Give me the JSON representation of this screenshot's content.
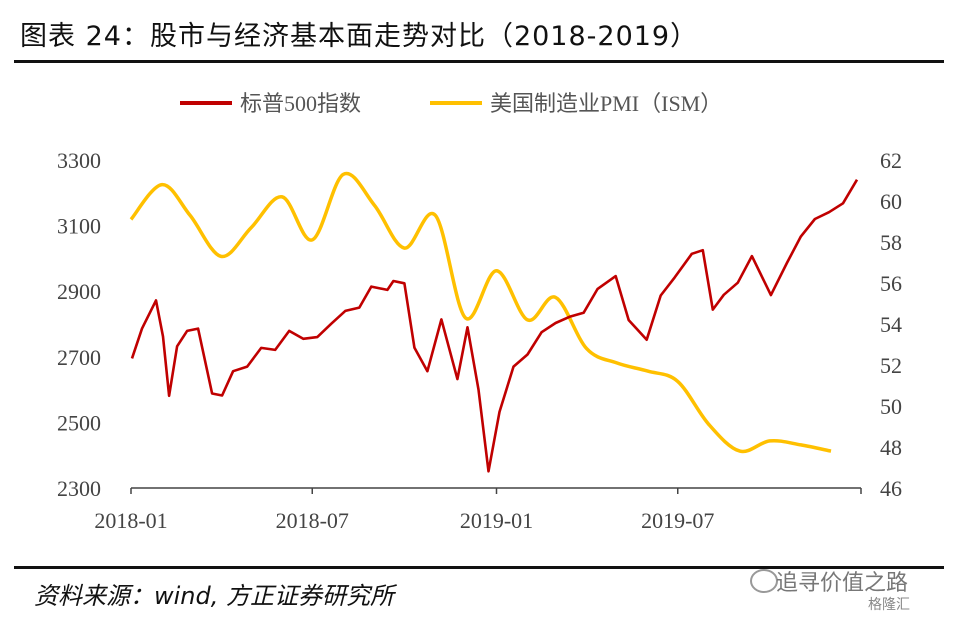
{
  "title": "图表 24：股市与经济基本面走势对比（2018-2019）",
  "source": "资料来源：wind, 方正证券研究所",
  "watermark": "追寻价值之路",
  "watermark_sub": "格隆汇",
  "colors": {
    "sp500": "#c00000",
    "pmi": "#ffc000",
    "axis": "#555555"
  },
  "chart_data": {
    "type": "line",
    "title": "",
    "xlabel": "",
    "ylabel": "",
    "legend_position": "top",
    "grid": false,
    "x_ticks": [
      "2018-01",
      "2018-07",
      "2019-01",
      "2019-07"
    ],
    "x_range": [
      "2018-01-01",
      "2019-12-31"
    ],
    "y_left_ticks": [
      2300,
      2500,
      2700,
      2900,
      3100,
      3300
    ],
    "y_left_range": [
      2300,
      3300
    ],
    "y_right_ticks": [
      46,
      48,
      50,
      52,
      54,
      56,
      58,
      60,
      62
    ],
    "y_right_range": [
      46,
      62
    ],
    "series": [
      {
        "name": "标普500指数",
        "axis": "left",
        "color": "#c00000",
        "x": [
          "2018-01-02",
          "2018-01-12",
          "2018-01-26",
          "2018-02-02",
          "2018-02-08",
          "2018-02-16",
          "2018-02-26",
          "2018-03-09",
          "2018-03-23",
          "2018-04-02",
          "2018-04-13",
          "2018-04-27",
          "2018-05-11",
          "2018-05-25",
          "2018-06-08",
          "2018-06-22",
          "2018-07-06",
          "2018-07-20",
          "2018-08-03",
          "2018-08-17",
          "2018-08-29",
          "2018-09-14",
          "2018-09-20",
          "2018-10-01",
          "2018-10-11",
          "2018-10-24",
          "2018-11-07",
          "2018-11-23",
          "2018-12-03",
          "2018-12-14",
          "2018-12-24",
          "2019-01-04",
          "2019-01-18",
          "2019-02-01",
          "2019-02-15",
          "2019-03-01",
          "2019-03-15",
          "2019-03-29",
          "2019-04-12",
          "2019-04-30",
          "2019-05-13",
          "2019-05-31",
          "2019-06-14",
          "2019-06-28",
          "2019-07-15",
          "2019-07-26",
          "2019-08-05",
          "2019-08-16",
          "2019-08-30",
          "2019-09-13",
          "2019-10-02",
          "2019-10-18",
          "2019-11-01",
          "2019-11-15",
          "2019-11-29",
          "2019-12-13",
          "2019-12-27"
        ],
        "values": [
          2695,
          2786,
          2872,
          2762,
          2581,
          2732,
          2779,
          2786,
          2588,
          2582,
          2656,
          2670,
          2727,
          2721,
          2779,
          2755,
          2760,
          2801,
          2840,
          2850,
          2914,
          2904,
          2931,
          2924,
          2728,
          2656,
          2814,
          2632,
          2790,
          2600,
          2351,
          2532,
          2670,
          2707,
          2775,
          2803,
          2822,
          2834,
          2907,
          2946,
          2812,
          2752,
          2887,
          2942,
          3014,
          3025,
          2844,
          2889,
          2926,
          3007,
          2888,
          2986,
          3067,
          3120,
          3141,
          3168,
          3240
        ]
      },
      {
        "name": "美国制造业PMI（ISM）",
        "axis": "right",
        "color": "#ffc000",
        "x": [
          "2018-01-01",
          "2018-02-01",
          "2018-03-01",
          "2018-04-01",
          "2018-05-01",
          "2018-06-01",
          "2018-07-01",
          "2018-08-01",
          "2018-09-01",
          "2018-10-01",
          "2018-11-01",
          "2018-12-01",
          "2019-01-01",
          "2019-02-01",
          "2019-03-01",
          "2019-04-01",
          "2019-05-01",
          "2019-06-01",
          "2019-07-01",
          "2019-08-01",
          "2019-09-01",
          "2019-10-01",
          "2019-11-01",
          "2019-12-01"
        ],
        "values": [
          59.1,
          60.8,
          59.3,
          57.3,
          58.7,
          60.2,
          58.1,
          61.3,
          59.8,
          57.7,
          59.3,
          54.3,
          56.6,
          54.2,
          55.3,
          52.8,
          52.1,
          51.7,
          51.2,
          49.1,
          47.8,
          48.3,
          48.1,
          47.8
        ]
      }
    ]
  }
}
